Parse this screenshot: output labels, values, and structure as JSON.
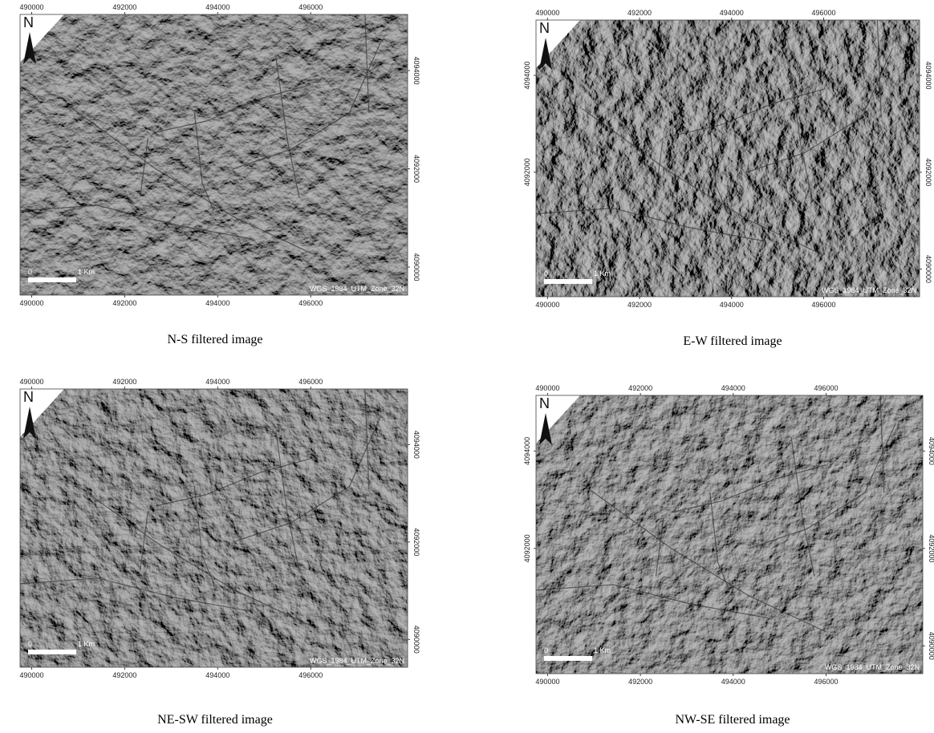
{
  "panels": [
    {
      "caption": "N-S filtered image",
      "north": "N",
      "scale_start": "0",
      "scale_end": "1 Km",
      "projection": "WGS_1984_UTM_Zone_32N",
      "top_ticks": [
        "490000",
        "492000",
        "494000",
        "496000"
      ],
      "bottom_ticks": [
        "490000",
        "492000",
        "494000",
        "496000"
      ],
      "right_ticks": [
        "4094000",
        "4092000",
        "4090000"
      ]
    },
    {
      "caption": "E-W filtered image",
      "north": "N",
      "scale_start": "0",
      "scale_end": "1 Km",
      "projection": "WGS_1984_UTM_Zone_32N",
      "top_ticks": [
        "490000",
        "492000",
        "494000",
        "496000"
      ],
      "bottom_ticks": [
        "490000",
        "492000",
        "494000",
        "496000"
      ],
      "left_ticks": [
        "4094000",
        "4092000"
      ],
      "right_ticks": [
        "4094000",
        "4092000",
        "4090000"
      ]
    },
    {
      "caption": "NE-SW filtered image",
      "north": "N",
      "scale_start": "0",
      "scale_end": "1 Km",
      "projection": "WGS_1984_UTM_Zone_32N",
      "top_ticks": [
        "490000",
        "492000",
        "494000",
        "496000"
      ],
      "bottom_ticks": [
        "490000",
        "492000",
        "494000",
        "496000"
      ],
      "right_ticks": [
        "4094000",
        "4092000",
        "4090000"
      ]
    },
    {
      "caption": "NW-SE filtered image",
      "north": "N",
      "scale_start": "0",
      "scale_end": "1 Km",
      "projection": "WGS_1984_UTM_Zone_32N",
      "top_ticks": [
        "490000",
        "492000",
        "494000",
        "496000"
      ],
      "bottom_ticks": [
        "490000",
        "492000",
        "494000",
        "496000"
      ],
      "left_ticks": [
        "4094000",
        "4092000"
      ],
      "right_ticks": [
        "4094000",
        "4092000",
        "4090000"
      ]
    }
  ]
}
